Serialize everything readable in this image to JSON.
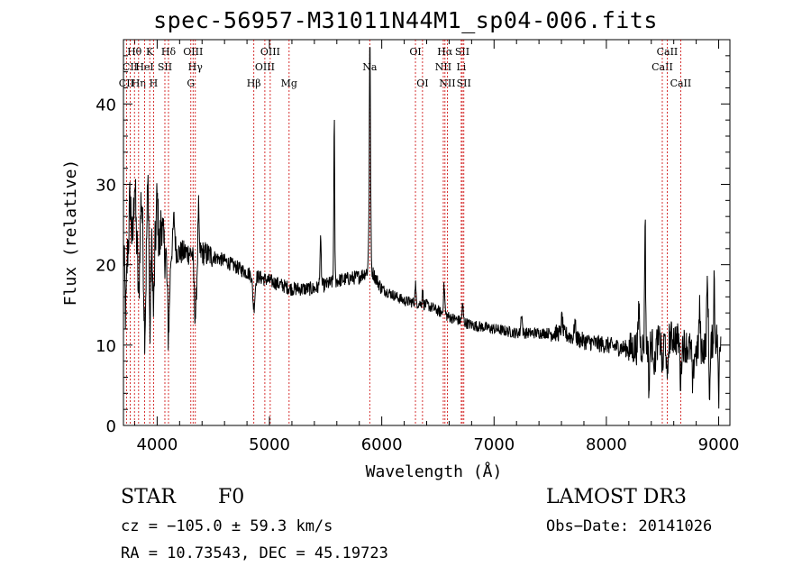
{
  "chart_data": {
    "type": "line",
    "title": "spec-56957-M31011N44M1_sp04-006.fits",
    "xlabel": "Wavelength (Å)",
    "ylabel": "Flux (relative)",
    "xlim": [
      3700,
      9100
    ],
    "ylim": [
      0,
      48
    ],
    "x_ticks": [
      4000,
      5000,
      6000,
      7000,
      8000,
      9000
    ],
    "y_ticks": [
      0,
      10,
      20,
      30,
      40
    ],
    "continuum": [
      [
        3700,
        22
      ],
      [
        3800,
        22.5
      ],
      [
        4000,
        22
      ],
      [
        4200,
        21.5
      ],
      [
        4400,
        21.5
      ],
      [
        4600,
        20.5
      ],
      [
        4800,
        19
      ],
      [
        5000,
        18
      ],
      [
        5200,
        17
      ],
      [
        5400,
        17
      ],
      [
        5600,
        18
      ],
      [
        5800,
        18.5
      ],
      [
        5900,
        19.5
      ],
      [
        6000,
        17
      ],
      [
        6200,
        15.5
      ],
      [
        6400,
        15
      ],
      [
        6600,
        13.5
      ],
      [
        6800,
        12.5
      ],
      [
        7000,
        12
      ],
      [
        7200,
        11.5
      ],
      [
        7400,
        11.5
      ],
      [
        7600,
        11.5
      ],
      [
        7800,
        10.5
      ],
      [
        8000,
        10
      ],
      [
        8200,
        9.5
      ],
      [
        8400,
        10
      ],
      [
        8600,
        11
      ],
      [
        8800,
        9
      ],
      [
        9000,
        11
      ],
      [
        9100,
        11
      ]
    ],
    "features": [
      [
        3720,
        -8,
        8
      ],
      [
        3760,
        6,
        8
      ],
      [
        3800,
        8,
        8
      ],
      [
        3835,
        -7,
        6
      ],
      [
        3860,
        6,
        8
      ],
      [
        3890,
        -10,
        8
      ],
      [
        3920,
        8,
        8
      ],
      [
        3935,
        -12,
        6
      ],
      [
        3968,
        -8,
        6
      ],
      [
        4000,
        6,
        8
      ],
      [
        4040,
        4,
        8
      ],
      [
        4101,
        -10,
        10
      ],
      [
        4150,
        4,
        8
      ],
      [
        4340,
        -8,
        10
      ],
      [
        4368,
        6,
        4
      ],
      [
        4861,
        -4,
        10
      ],
      [
        5455,
        5.5,
        6
      ],
      [
        5577,
        20,
        4
      ],
      [
        5890,
        9,
        6
      ],
      [
        5894,
        25,
        3
      ],
      [
        5900,
        10,
        4
      ],
      [
        6300,
        2.5,
        4
      ],
      [
        6363,
        2,
        4
      ],
      [
        6555,
        3.5,
        6
      ],
      [
        6720,
        2,
        6
      ],
      [
        7245,
        2.5,
        6
      ],
      [
        7605,
        2,
        6
      ],
      [
        7720,
        2,
        6
      ],
      [
        8290,
        5,
        6
      ],
      [
        8345,
        17,
        4
      ],
      [
        8380,
        -6,
        4
      ],
      [
        8430,
        -3,
        6
      ],
      [
        8500,
        -4,
        6
      ],
      [
        8542,
        -6,
        6
      ],
      [
        8662,
        -5,
        6
      ],
      [
        8770,
        -5,
        6
      ],
      [
        8830,
        5,
        6
      ],
      [
        8900,
        8,
        6
      ],
      [
        8920,
        -6,
        6
      ],
      [
        8960,
        8,
        4
      ],
      [
        9000,
        -9,
        4
      ]
    ],
    "lines": [
      {
        "name": "CII",
        "wave": 3727,
        "row": 2
      },
      {
        "name": "Hθ",
        "wave": 3798,
        "row": 0
      },
      {
        "name": "CII",
        "wave": 3760,
        "row": 1
      },
      {
        "name": "Hη",
        "wave": 3835,
        "row": 2
      },
      {
        "name": "HeI",
        "wave": 3889,
        "row": 1
      },
      {
        "name": "K",
        "wave": 3934,
        "row": 0
      },
      {
        "name": "H",
        "wave": 3968,
        "row": 2
      },
      {
        "name": "SII",
        "wave": 4069,
        "row": 1
      },
      {
        "name": "Hδ",
        "wave": 4101,
        "row": 0
      },
      {
        "name": "OIII",
        "wave": 4320,
        "row": 0
      },
      {
        "name": "Hγ",
        "wave": 4340,
        "row": 1
      },
      {
        "name": "G",
        "wave": 4300,
        "row": 2
      },
      {
        "name": "Hβ",
        "wave": 4861,
        "row": 2
      },
      {
        "name": "OIII",
        "wave": 4959,
        "row": 1
      },
      {
        "name": "OIII",
        "wave": 5007,
        "row": 0
      },
      {
        "name": "Mg",
        "wave": 5175,
        "row": 2
      },
      {
        "name": "Na",
        "wave": 5893,
        "row": 1
      },
      {
        "name": "OI",
        "wave": 6300,
        "row": 0
      },
      {
        "name": "OI",
        "wave": 6363,
        "row": 2
      },
      {
        "name": "NII",
        "wave": 6548,
        "row": 1
      },
      {
        "name": "Hα",
        "wave": 6563,
        "row": 0
      },
      {
        "name": "NII",
        "wave": 6584,
        "row": 2
      },
      {
        "name": "Li",
        "wave": 6708,
        "row": 1
      },
      {
        "name": "SII",
        "wave": 6717,
        "row": 0
      },
      {
        "name": "SII",
        "wave": 6731,
        "row": 2
      },
      {
        "name": "CaII",
        "wave": 8498,
        "row": 1
      },
      {
        "name": "CaII",
        "wave": 8542,
        "row": 0
      },
      {
        "name": "CaII",
        "wave": 8662,
        "row": 2
      }
    ]
  },
  "info": {
    "obj_class": "STAR",
    "subclass": "F0",
    "cz": "cz = −105.0 ± 59.3 km/s",
    "coords": "RA =  10.73543, DEC =  45.19723",
    "survey": "LAMOST DR3",
    "obs_date": "Obs−Date: 20141026"
  }
}
